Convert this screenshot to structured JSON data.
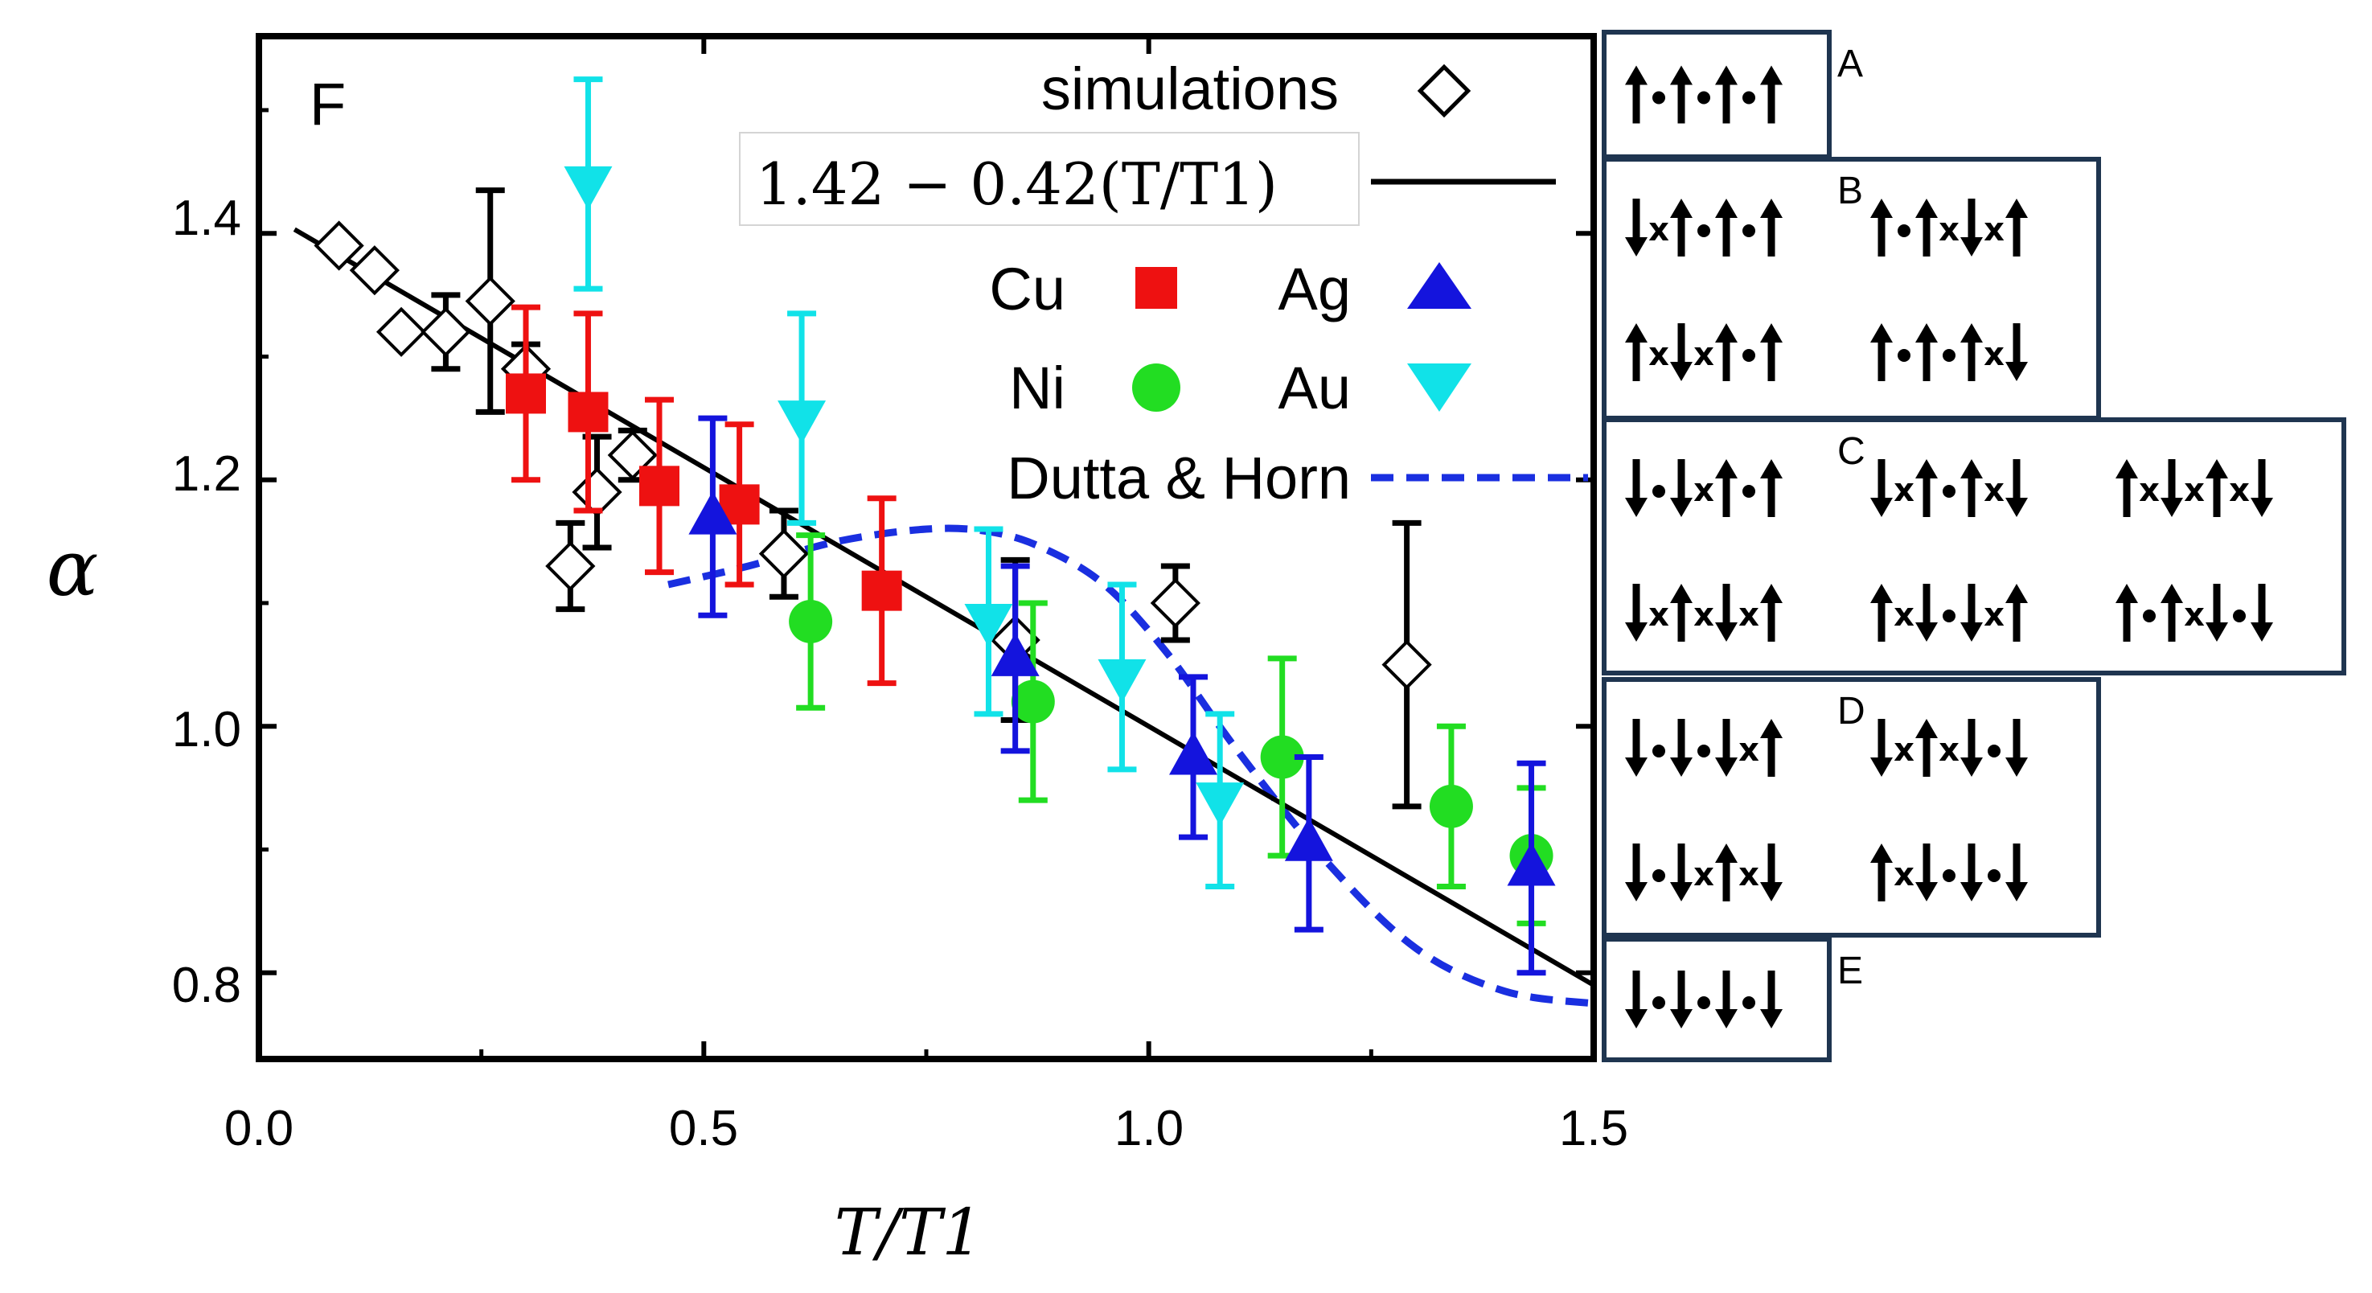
{
  "chart_data": {
    "type": "scatter",
    "panel_label": "F",
    "xlabel": "T/T1",
    "ylabel": "α",
    "xlim": [
      0.0,
      1.5
    ],
    "ylim": [
      0.73,
      1.56
    ],
    "xticks": [
      "0.0",
      "0.5",
      "1.0",
      "1.5"
    ],
    "yticks": [
      "0.8",
      "1.0",
      "1.2",
      "1.4"
    ],
    "colors": {
      "simulations": "#000000",
      "Cu": "#ee1111",
      "Ni": "#22dd22",
      "Ag": "#1414dd",
      "Au": "#11e2e8",
      "fit": "#000000",
      "dutta": "#1a2fe0"
    },
    "legend": {
      "simulations": "simulations",
      "fit": "1.42 − 0.42(T/T1)",
      "Cu": "Cu",
      "Ag": "Ag",
      "Ni": "Ni",
      "Au": "Au",
      "dutta": "Dutta & Horn"
    },
    "fit_line": {
      "intercept": 1.42,
      "slope": -0.42,
      "x_range": [
        0.04,
        1.5
      ]
    },
    "series": [
      {
        "name": "simulations",
        "marker": "diamond-open",
        "x": [
          0.09,
          0.13,
          0.16,
          0.21,
          0.26,
          0.3,
          0.35,
          0.38,
          0.42,
          0.59,
          0.85,
          1.03,
          1.29
        ],
        "y": [
          1.39,
          1.37,
          1.32,
          1.32,
          1.345,
          1.29,
          1.13,
          1.19,
          1.22,
          1.14,
          1.07,
          1.1,
          1.05
        ],
        "err": [
          0,
          0,
          0,
          0.03,
          0.09,
          0.02,
          0.035,
          0.045,
          0.02,
          0.035,
          0.065,
          0.03,
          0.115
        ]
      },
      {
        "name": "Cu",
        "marker": "square",
        "x": [
          0.3,
          0.37,
          0.45,
          0.54,
          0.7
        ],
        "y": [
          1.27,
          1.255,
          1.195,
          1.18,
          1.11
        ],
        "err": [
          0.07,
          0.08,
          0.07,
          0.065,
          0.075
        ]
      },
      {
        "name": "Ni",
        "marker": "circle",
        "x": [
          0.62,
          0.87,
          1.15,
          1.34,
          1.43
        ],
        "y": [
          1.085,
          1.02,
          0.975,
          0.935,
          0.895
        ],
        "err": [
          0.07,
          0.08,
          0.08,
          0.065,
          0.055
        ]
      },
      {
        "name": "Ag",
        "marker": "triangle-up",
        "x": [
          0.51,
          0.85,
          1.05,
          1.18,
          1.43
        ],
        "y": [
          1.17,
          1.055,
          0.975,
          0.905,
          0.885
        ],
        "err": [
          0.08,
          0.075,
          0.065,
          0.07,
          0.085
        ]
      },
      {
        "name": "Au",
        "marker": "triangle-down",
        "x": [
          0.37,
          0.61,
          0.82,
          0.97,
          1.08
        ],
        "y": [
          1.44,
          1.25,
          1.085,
          1.04,
          0.94
        ],
        "err": [
          0.085,
          0.085,
          0.075,
          0.075,
          0.07
        ]
      },
      {
        "name": "Dutta & Horn",
        "marker": "dashed-line",
        "x": [
          0.46,
          0.55,
          0.65,
          0.75,
          0.82,
          0.88,
          0.95,
          1.02,
          1.1,
          1.2,
          1.3,
          1.4,
          1.5
        ],
        "y": [
          1.115,
          1.13,
          1.15,
          1.16,
          1.158,
          1.145,
          1.115,
          1.06,
          0.98,
          0.89,
          0.82,
          0.785,
          0.775
        ]
      }
    ]
  },
  "panels": [
    {
      "label": "A",
      "rows": [
        [
          "up",
          "dot",
          "up",
          "dot",
          "up",
          "dot",
          "up"
        ]
      ]
    },
    {
      "label": "B",
      "rows": [
        [
          "down",
          "x",
          "up",
          "dot",
          "up",
          "dot",
          "up"
        ],
        [
          "up",
          "x",
          "down",
          "x",
          "up",
          "dot",
          "up"
        ],
        [
          "up",
          "dot",
          "up",
          "x",
          "down",
          "x",
          "up"
        ],
        [
          "up",
          "dot",
          "up",
          "dot",
          "up",
          "x",
          "down"
        ]
      ]
    },
    {
      "label": "C",
      "rows": [
        [
          "down",
          "dot",
          "down",
          "x",
          "up",
          "dot",
          "up"
        ],
        [
          "down",
          "x",
          "up",
          "x",
          "down",
          "x",
          "up"
        ],
        [
          "down",
          "x",
          "up",
          "dot",
          "up",
          "x",
          "down"
        ],
        [
          "up",
          "x",
          "down",
          "dot",
          "down",
          "x",
          "up"
        ],
        [
          "up",
          "x",
          "down",
          "x",
          "up",
          "x",
          "down"
        ],
        [
          "up",
          "dot",
          "up",
          "x",
          "down",
          "dot",
          "down"
        ]
      ]
    },
    {
      "label": "D",
      "rows": [
        [
          "down",
          "dot",
          "down",
          "dot",
          "down",
          "x",
          "up"
        ],
        [
          "down",
          "dot",
          "down",
          "x",
          "up",
          "x",
          "down"
        ],
        [
          "down",
          "x",
          "up",
          "x",
          "down",
          "dot",
          "down"
        ],
        [
          "up",
          "x",
          "down",
          "dot",
          "down",
          "dot",
          "down"
        ]
      ]
    },
    {
      "label": "E",
      "rows": [
        [
          "down",
          "dot",
          "down",
          "dot",
          "down",
          "dot",
          "down"
        ]
      ]
    }
  ]
}
